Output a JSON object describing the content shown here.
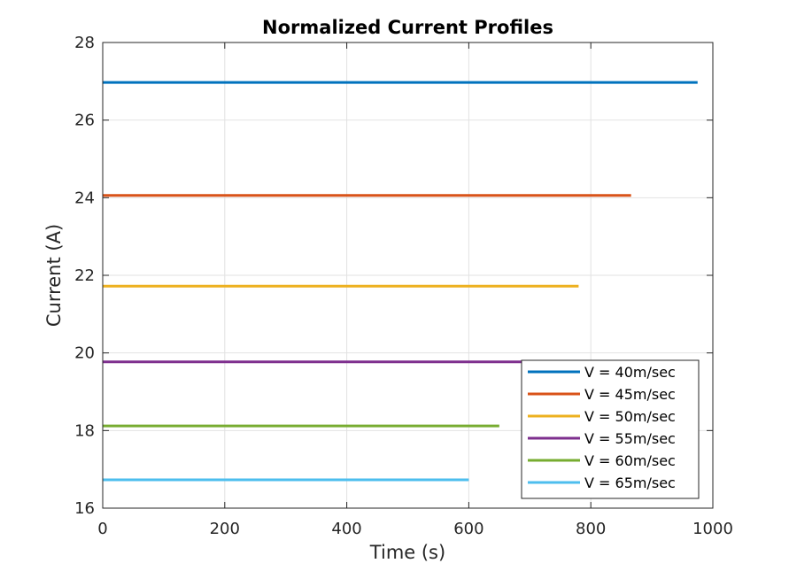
{
  "chart_data": {
    "type": "line",
    "title": "Normalized Current Profiles",
    "xlabel": "Time (s)",
    "ylabel": "Current (A)",
    "xlim": [
      0,
      1000
    ],
    "ylim": [
      16,
      28
    ],
    "xticks": [
      0,
      200,
      400,
      600,
      800,
      1000
    ],
    "yticks": [
      16,
      18,
      20,
      22,
      24,
      26,
      28
    ],
    "grid": true,
    "legend_position": "bottom-right",
    "series": [
      {
        "name": "V = 40m/sec",
        "color": "#0072BD",
        "x": [
          0,
          975
        ],
        "y": [
          26.97,
          26.97
        ]
      },
      {
        "name": "V = 45m/sec",
        "color": "#D95319",
        "x": [
          0,
          866
        ],
        "y": [
          24.06,
          24.06
        ]
      },
      {
        "name": "V = 50m/sec",
        "color": "#EDB120",
        "x": [
          0,
          780
        ],
        "y": [
          21.72,
          21.72
        ]
      },
      {
        "name": "V = 55m/sec",
        "color": "#7E2F8E",
        "x": [
          0,
          710
        ],
        "y": [
          19.77,
          19.77
        ]
      },
      {
        "name": "V = 60m/sec",
        "color": "#77AC30",
        "x": [
          0,
          650
        ],
        "y": [
          18.12,
          18.12
        ]
      },
      {
        "name": "V = 65m/sec",
        "color": "#4DBEEE",
        "x": [
          0,
          600
        ],
        "y": [
          16.73,
          16.73
        ]
      }
    ]
  }
}
